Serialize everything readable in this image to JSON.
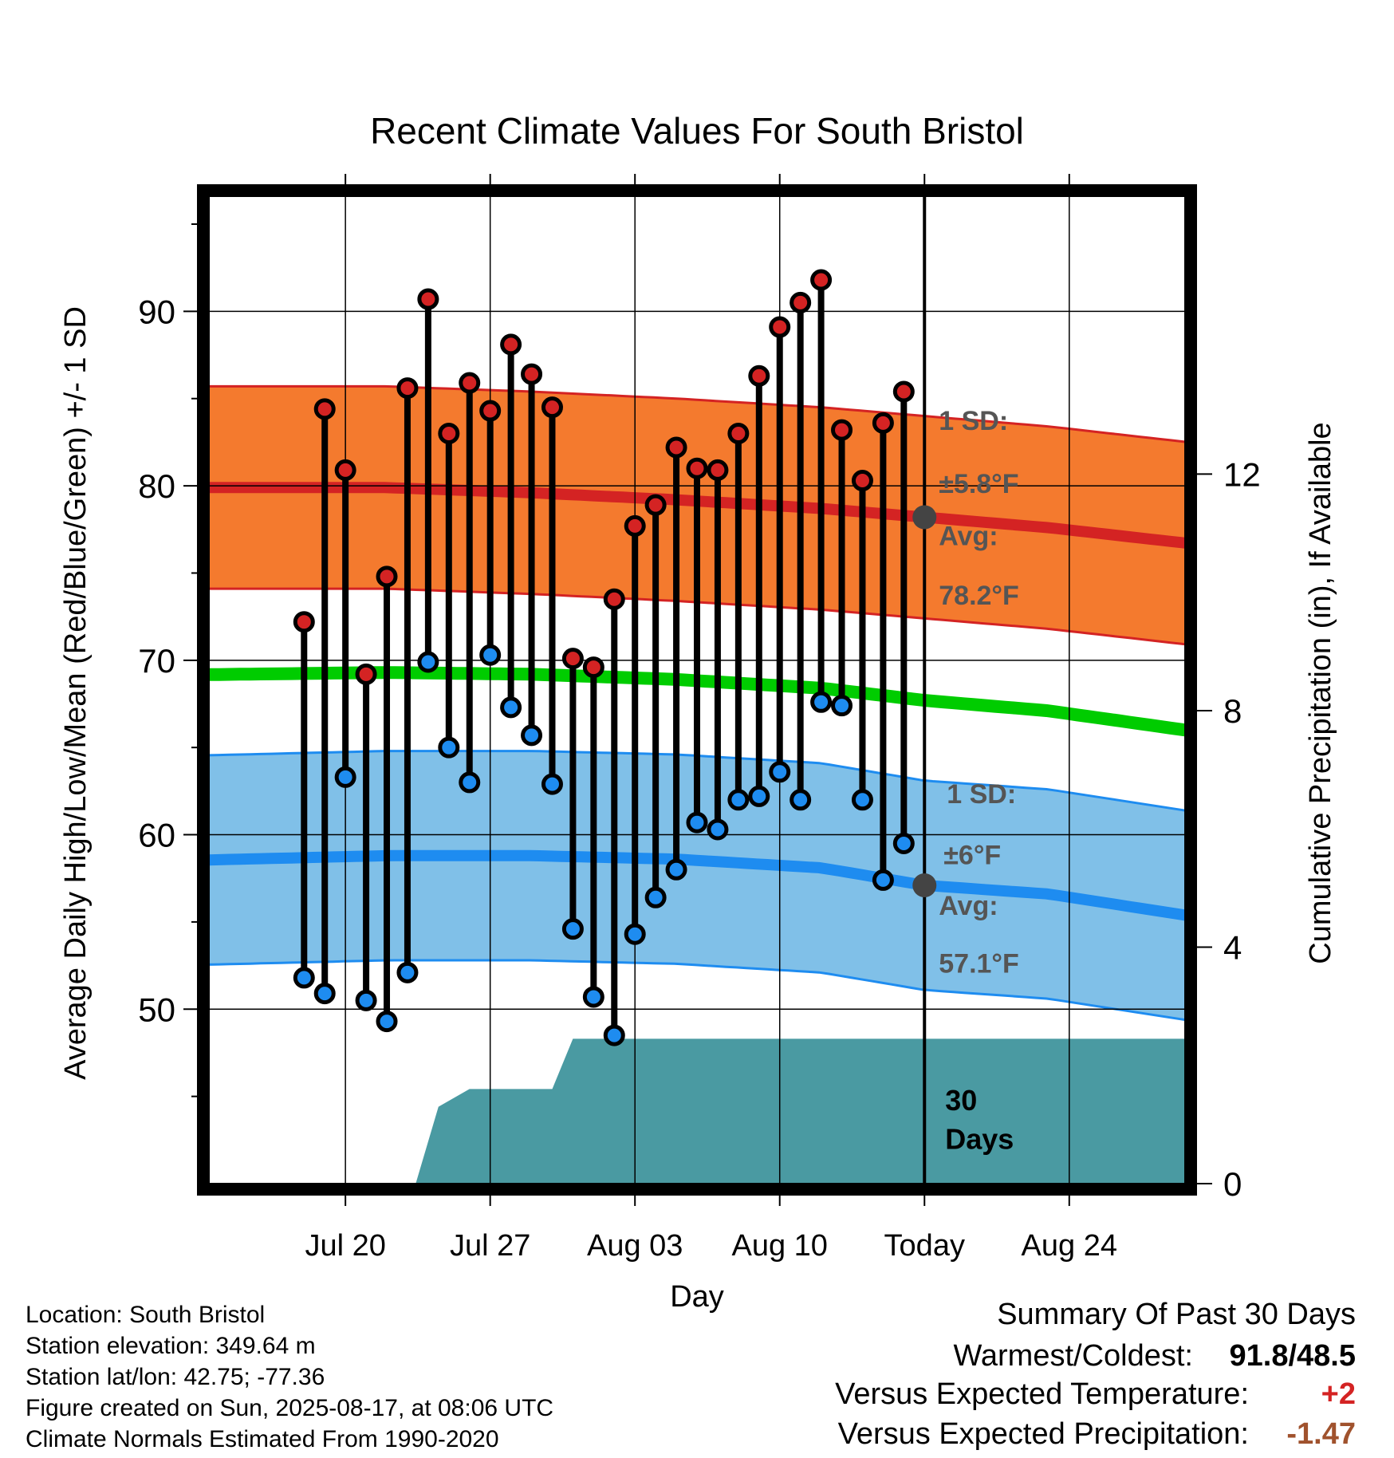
{
  "chart_data": {
    "type": "line",
    "title": "Recent Climate Values For South Bristol",
    "xlabel": "Day",
    "ylabel": "Average Daily High/Low/Mean (Red/Blue/Green) +/- 1 SD",
    "y2label": "Cumulative Precipitation (in), If Available",
    "x_day_range": [
      -34.6,
      12.6
    ],
    "ylim": [
      40,
      96.6
    ],
    "y2lim": [
      0,
      16.7
    ],
    "grid": true,
    "x_ticks": [
      {
        "day": -28,
        "label": "Jul 20"
      },
      {
        "day": -21,
        "label": "Jul 27"
      },
      {
        "day": -14,
        "label": "Aug 03"
      },
      {
        "day": -7,
        "label": "Aug 10"
      },
      {
        "day": 0,
        "label": "Today"
      },
      {
        "day": 7,
        "label": "Aug 24"
      }
    ],
    "y_ticks": [
      50,
      60,
      70,
      80,
      90
    ],
    "y2_ticks": [
      0,
      4,
      8,
      12
    ],
    "today_label": "Today",
    "days": [
      -30,
      -29,
      -28,
      -27,
      -26,
      -25,
      -24,
      -23,
      -22,
      -21,
      -20,
      -19,
      -18,
      -17,
      -16,
      -15,
      -14,
      -13,
      -12,
      -11,
      -10,
      -9,
      -8,
      -7,
      -6,
      -5,
      -4,
      -3,
      -2,
      -1
    ],
    "highs": [
      72.2,
      84.4,
      80.9,
      69.2,
      74.8,
      85.6,
      90.7,
      83.0,
      85.9,
      84.3,
      88.1,
      86.4,
      84.5,
      70.1,
      69.6,
      73.5,
      77.7,
      78.9,
      82.2,
      81.0,
      80.9,
      83.0,
      86.3,
      89.1,
      90.5,
      91.8,
      83.2,
      80.3,
      83.6,
      85.4
    ],
    "lows": [
      51.8,
      50.9,
      63.3,
      50.5,
      49.3,
      52.1,
      69.9,
      65.0,
      63.0,
      70.3,
      67.3,
      65.7,
      62.9,
      54.6,
      50.7,
      48.5,
      54.3,
      56.4,
      58.0,
      60.7,
      60.3,
      62.0,
      62.2,
      63.6,
      62.0,
      67.6,
      67.4,
      62.0,
      57.4,
      59.5
    ],
    "normals": {
      "days": [
        -33,
        -26,
        -19,
        -12,
        -5,
        0,
        6,
        12
      ],
      "high": [
        79.9,
        79.9,
        79.6,
        79.2,
        78.7,
        78.2,
        77.6,
        76.8
      ],
      "high_sd": 5.8,
      "low": [
        58.6,
        58.8,
        58.8,
        58.6,
        58.1,
        57.1,
        56.6,
        55.5
      ],
      "low_sd": 6,
      "mean": [
        69.2,
        69.3,
        69.2,
        68.9,
        68.4,
        67.7,
        67.1,
        66.1
      ]
    },
    "precip_cumulative": {
      "x": [
        -34.6,
        -24.6,
        -23.5,
        -22.0,
        -21.0,
        -18.0,
        -17.0,
        12.6
      ],
      "y": [
        0,
        0,
        1.3,
        1.6,
        1.6,
        1.6,
        2.45,
        2.45
      ],
      "label": "30 Days"
    },
    "annotations": {
      "high_sd_label": "1 SD:",
      "high_sd_value": "±5.8°F",
      "high_avg_label": "Avg:",
      "high_avg_value": "78.2°F",
      "low_sd_label": "1 SD:",
      "low_sd_value": "±6°F",
      "low_avg_label": "Avg:",
      "low_avg_value": "57.1°F"
    },
    "colors": {
      "high_band": "#f47a2e",
      "high_line": "#d42323",
      "low_band": "#80c0e8",
      "low_line": "#1e8cf0",
      "mean_line": "#00cc00",
      "precip": "#4a9aa2",
      "high_dot": "#d42323",
      "low_dot": "#1e8cf0",
      "today_dot": "#444444",
      "annotation_text": "#555555"
    }
  },
  "info": {
    "location": "Location: South Bristol",
    "elevation": "Station elevation: 349.64 m",
    "latlon": "Station lat/lon: 42.75; -77.36",
    "created": "Figure created on Sun, 2025-08-17, at 08:06 UTC",
    "normals": "Climate Normals Estimated From 1990-2020"
  },
  "summary": {
    "title": "Summary Of Past 30 Days",
    "warm_cold_label": "Warmest/Coldest:",
    "warm_cold_value": "91.8/48.5",
    "temp_label": "Versus Expected Temperature:",
    "temp_value": "+2",
    "temp_color": "#d42323",
    "precip_label": "Versus Expected Precipitation:",
    "precip_value": "-1.47",
    "precip_color": "#a0522d"
  }
}
